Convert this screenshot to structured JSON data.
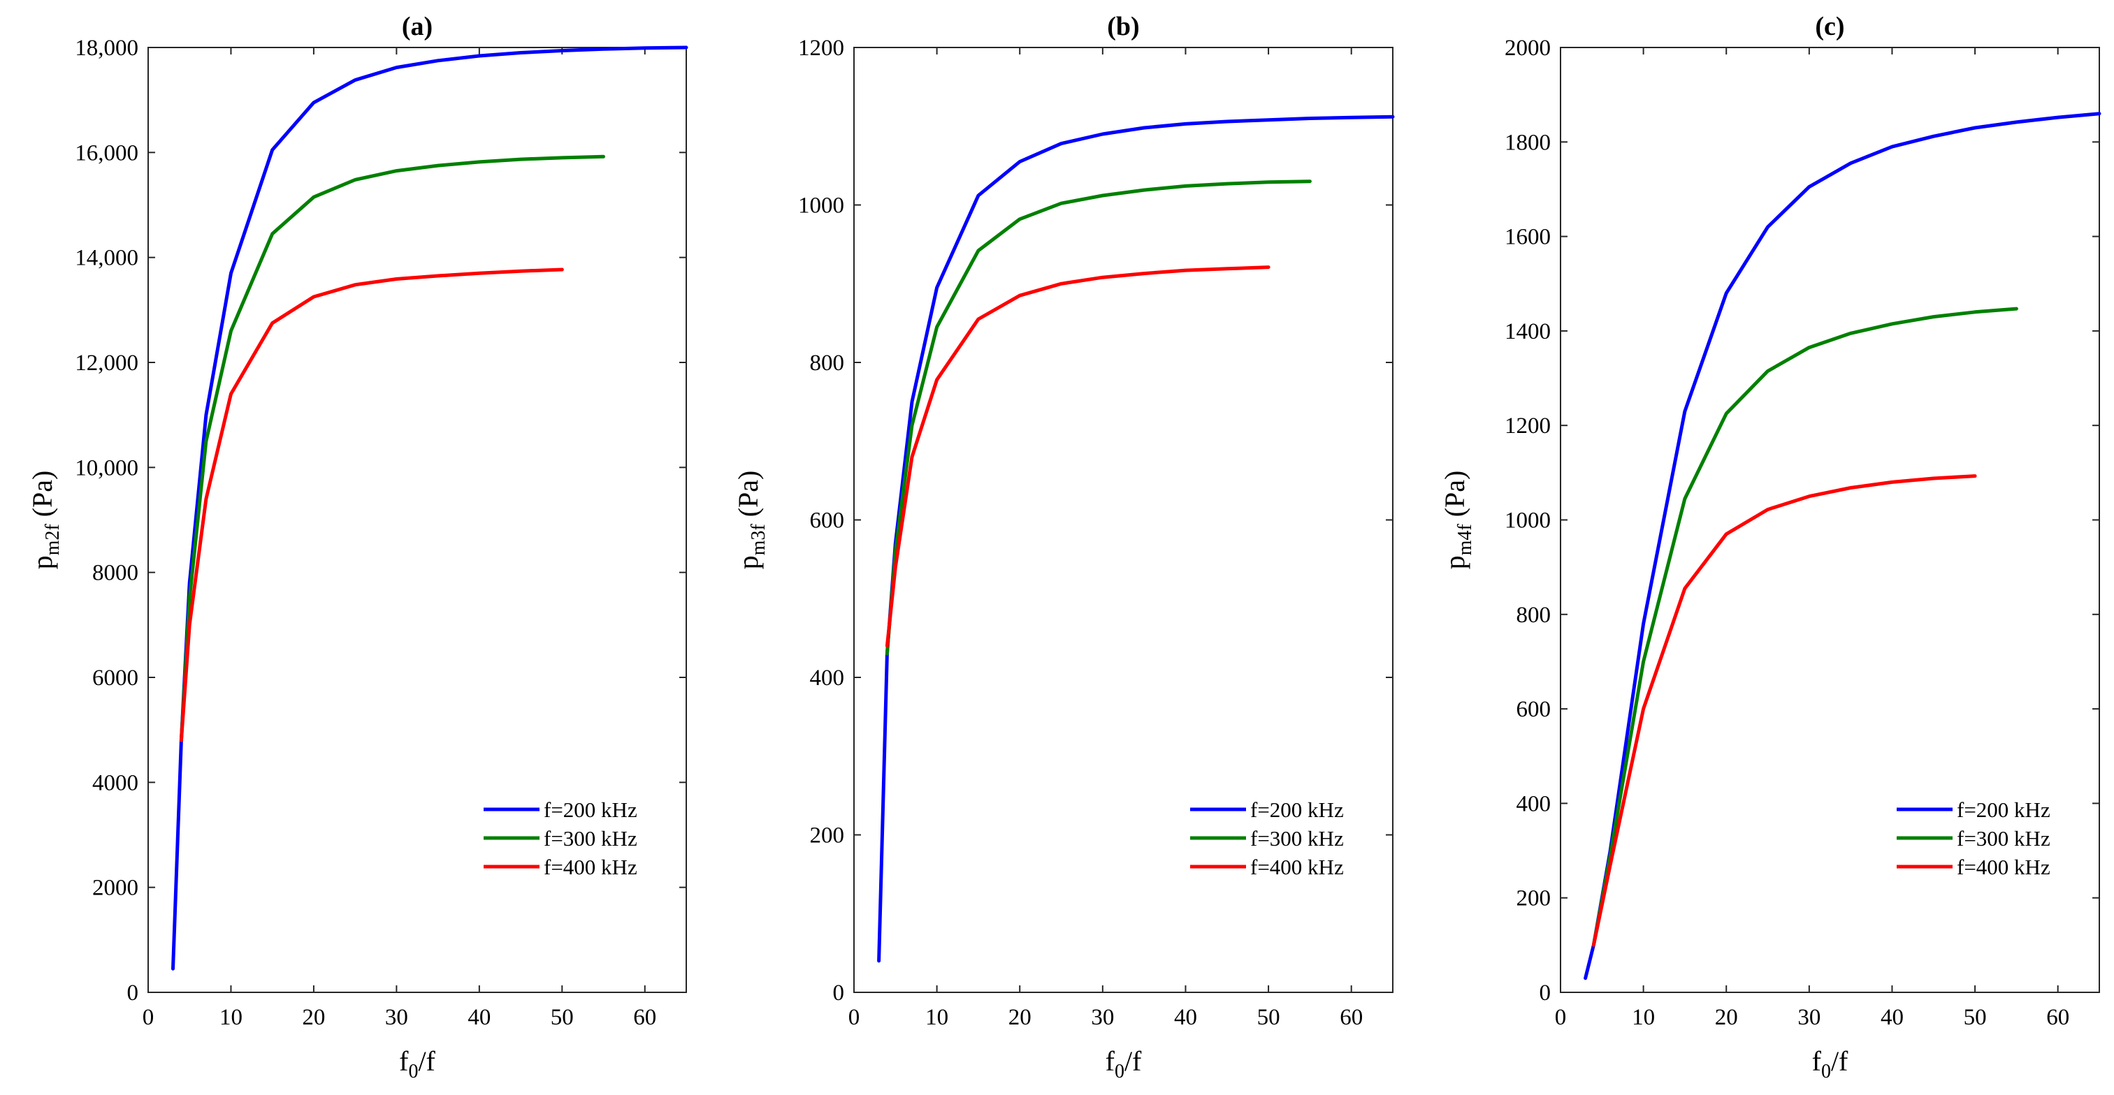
{
  "chart_data": [
    {
      "type": "line",
      "title": "(a)",
      "xlabel": {
        "base": "f",
        "sub": "0",
        "rest": "/f"
      },
      "ylabel": {
        "base": "p",
        "sub": "m2f",
        "rest": " (Pa)"
      },
      "xlim": [
        0,
        65
      ],
      "ylim": [
        0,
        18000
      ],
      "xticks": [
        0,
        10,
        20,
        30,
        40,
        50,
        60
      ],
      "yticks": [
        0,
        2000,
        4000,
        6000,
        8000,
        10000,
        12000,
        14000,
        16000,
        18000
      ],
      "ytick_labels": [
        "0",
        "2000",
        "4000",
        "6000",
        "8000",
        "10,000",
        "12,000",
        "14,000",
        "16,000",
        "18,000"
      ],
      "legend_position": "bottom-right",
      "series": [
        {
          "name": "f=200 kHz",
          "color": "#0000ff",
          "x": [
            3,
            4,
            5,
            7,
            10,
            15,
            20,
            25,
            30,
            35,
            40,
            45,
            50,
            55,
            60,
            65
          ],
          "y": [
            450,
            4800,
            7800,
            11000,
            13700,
            16050,
            16950,
            17380,
            17620,
            17750,
            17840,
            17900,
            17940,
            17970,
            17990,
            18000
          ]
        },
        {
          "name": "f=300 kHz",
          "color": "#008000",
          "x": [
            4,
            5,
            7,
            10,
            15,
            20,
            25,
            30,
            35,
            40,
            45,
            50,
            55
          ],
          "y": [
            4800,
            7500,
            10500,
            12600,
            14450,
            15150,
            15480,
            15650,
            15750,
            15820,
            15870,
            15900,
            15920
          ]
        },
        {
          "name": "f=400 kHz",
          "color": "#ff0000",
          "x": [
            4,
            5,
            7,
            10,
            15,
            20,
            25,
            30,
            35,
            40,
            45,
            50
          ],
          "y": [
            4800,
            7000,
            9400,
            11400,
            12750,
            13250,
            13480,
            13590,
            13650,
            13700,
            13740,
            13770
          ]
        }
      ]
    },
    {
      "type": "line",
      "title": "(b)",
      "xlabel": {
        "base": "f",
        "sub": "0",
        "rest": "/f"
      },
      "ylabel": {
        "base": "p",
        "sub": "m3f",
        "rest": " (Pa)"
      },
      "xlim": [
        0,
        65
      ],
      "ylim": [
        0,
        1200
      ],
      "xticks": [
        0,
        10,
        20,
        30,
        40,
        50,
        60
      ],
      "yticks": [
        0,
        200,
        400,
        600,
        800,
        1000,
        1200
      ],
      "ytick_labels": [
        "0",
        "200",
        "400",
        "600",
        "800",
        "1000",
        "1200"
      ],
      "legend_position": "bottom-right",
      "series": [
        {
          "name": "f=200 kHz",
          "color": "#0000ff",
          "x": [
            3,
            4,
            5,
            7,
            10,
            15,
            20,
            25,
            30,
            35,
            40,
            45,
            50,
            55,
            60,
            65
          ],
          "y": [
            40,
            430,
            570,
            750,
            895,
            1012,
            1055,
            1078,
            1090,
            1098,
            1103,
            1106,
            1108,
            1110,
            1111,
            1112
          ]
        },
        {
          "name": "f=300 kHz",
          "color": "#008000",
          "x": [
            4,
            5,
            7,
            10,
            15,
            20,
            25,
            30,
            35,
            40,
            45,
            50,
            55
          ],
          "y": [
            430,
            560,
            720,
            845,
            942,
            982,
            1002,
            1012,
            1019,
            1024,
            1027,
            1029,
            1030
          ]
        },
        {
          "name": "f=400 kHz",
          "color": "#ff0000",
          "x": [
            4,
            5,
            7,
            10,
            15,
            20,
            25,
            30,
            35,
            40,
            45,
            50
          ],
          "y": [
            440,
            540,
            680,
            778,
            855,
            885,
            900,
            908,
            913,
            917,
            919,
            921
          ]
        }
      ]
    },
    {
      "type": "line",
      "title": "(c)",
      "xlabel": {
        "base": "f",
        "sub": "0",
        "rest": "/f"
      },
      "ylabel": {
        "base": "p",
        "sub": "m4f",
        "rest": " (Pa)"
      },
      "xlim": [
        0,
        65
      ],
      "ylim": [
        0,
        2000
      ],
      "xticks": [
        0,
        10,
        20,
        30,
        40,
        50,
        60
      ],
      "yticks": [
        0,
        200,
        400,
        600,
        800,
        1000,
        1200,
        1400,
        1600,
        1800,
        2000
      ],
      "ytick_labels": [
        "0",
        "200",
        "400",
        "600",
        "800",
        "1000",
        "1200",
        "1400",
        "1600",
        "1800",
        "2000"
      ],
      "legend_position": "bottom-right",
      "series": [
        {
          "name": "f=200 kHz",
          "color": "#0000ff",
          "x": [
            3,
            4,
            6,
            10,
            15,
            20,
            25,
            30,
            35,
            40,
            45,
            50,
            55,
            60,
            65
          ],
          "y": [
            30,
            100,
            300,
            780,
            1230,
            1480,
            1620,
            1705,
            1755,
            1790,
            1812,
            1830,
            1842,
            1852,
            1860
          ]
        },
        {
          "name": "f=300 kHz",
          "color": "#008000",
          "x": [
            4,
            6,
            10,
            15,
            20,
            25,
            30,
            35,
            40,
            45,
            50,
            55
          ],
          "y": [
            100,
            290,
            700,
            1045,
            1225,
            1315,
            1365,
            1395,
            1415,
            1430,
            1440,
            1447
          ]
        },
        {
          "name": "f=400 kHz",
          "color": "#ff0000",
          "x": [
            4,
            6,
            10,
            15,
            20,
            25,
            30,
            35,
            40,
            45,
            50
          ],
          "y": [
            100,
            270,
            600,
            855,
            970,
            1022,
            1050,
            1068,
            1080,
            1088,
            1093
          ]
        }
      ]
    }
  ]
}
